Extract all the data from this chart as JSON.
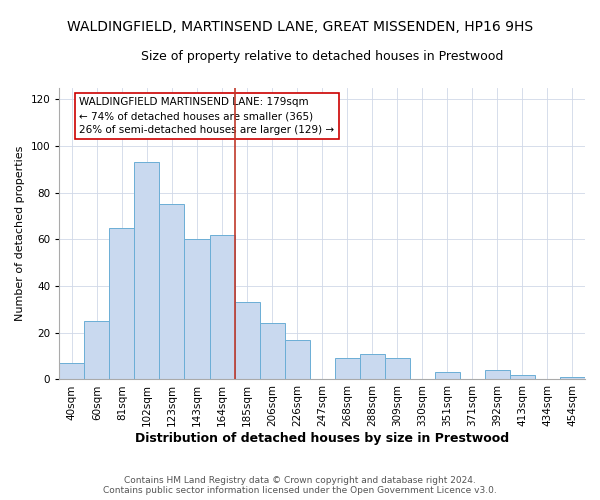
{
  "title": "WALDINGFIELD, MARTINSEND LANE, GREAT MISSENDEN, HP16 9HS",
  "subtitle": "Size of property relative to detached houses in Prestwood",
  "xlabel": "Distribution of detached houses by size in Prestwood",
  "ylabel": "Number of detached properties",
  "bar_labels": [
    "40sqm",
    "60sqm",
    "81sqm",
    "102sqm",
    "123sqm",
    "143sqm",
    "164sqm",
    "185sqm",
    "206sqm",
    "226sqm",
    "247sqm",
    "268sqm",
    "288sqm",
    "309sqm",
    "330sqm",
    "351sqm",
    "371sqm",
    "392sqm",
    "413sqm",
    "434sqm",
    "454sqm"
  ],
  "bar_values": [
    7,
    25,
    65,
    93,
    75,
    60,
    62,
    33,
    24,
    17,
    0,
    9,
    11,
    9,
    0,
    3,
    0,
    4,
    2,
    0,
    1
  ],
  "bar_color": "#c9d9ef",
  "bar_edge_color": "#6baed6",
  "vline_color": "#c0392b",
  "vline_index": 7,
  "annotation_text": "WALDINGFIELD MARTINSEND LANE: 179sqm\n← 74% of detached houses are smaller (365)\n26% of semi-detached houses are larger (129) →",
  "annotation_box_color": "white",
  "annotation_box_edge": "#cc0000",
  "ylim": [
    0,
    125
  ],
  "yticks": [
    0,
    20,
    40,
    60,
    80,
    100,
    120
  ],
  "footer1": "Contains HM Land Registry data © Crown copyright and database right 2024.",
  "footer2": "Contains public sector information licensed under the Open Government Licence v3.0.",
  "title_fontsize": 10,
  "subtitle_fontsize": 9,
  "xlabel_fontsize": 9,
  "ylabel_fontsize": 8,
  "tick_fontsize": 7.5,
  "annotation_fontsize": 7.5,
  "footer_fontsize": 6.5
}
